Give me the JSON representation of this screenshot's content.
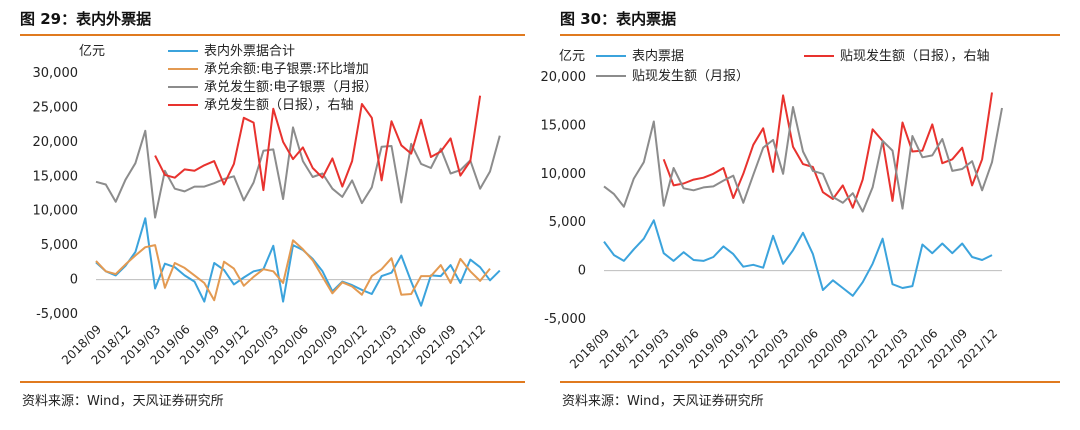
{
  "figures": [
    {
      "title": "图 29：表内外票据",
      "source": "资料来源：Wind，天风证券研究所"
    },
    {
      "title": "图 30：表内票据",
      "source": "资料来源：Wind，天风证券研究所"
    }
  ],
  "chart_data": [
    {
      "type": "line",
      "ylabel": "亿元",
      "ylim": [
        -10000,
        30000
      ],
      "yticks": [
        -5000,
        0,
        5000,
        10000,
        15000,
        20000,
        25000,
        30000
      ],
      "ytick_labels": [
        "-5,000",
        "0",
        "5,000",
        "10,000",
        "15,000",
        "20,000",
        "25,000",
        "30,000"
      ],
      "x_start": "2018/09",
      "x_tick_labels": [
        "2018/09",
        "2018/12",
        "2019/03",
        "2019/06",
        "2019/09",
        "2019/12",
        "2020/03",
        "2020/06",
        "2020/09",
        "2020/12",
        "2021/03",
        "2021/06",
        "2021/09",
        "2021/12"
      ],
      "grid": false,
      "legend_position": "top-center",
      "series": [
        {
          "name": "表内外票据合计",
          "color": "#3ba3dc",
          "x_offset": 0,
          "values": [
            2500,
            1200,
            600,
            2000,
            4000,
            8900,
            -1300,
            2300,
            1800,
            600,
            -300,
            -3200,
            2400,
            1400,
            -700,
            300,
            1200,
            1500,
            4900,
            -3200,
            5000,
            4300,
            3000,
            1200,
            -1700,
            -300,
            -800,
            -1500,
            -2100,
            500,
            1000,
            3500,
            -300,
            -3800,
            600,
            500,
            2100,
            -500,
            2900,
            1800,
            -100,
            1300
          ]
        },
        {
          "name": "承兑余额:电子银票:环比增加",
          "color": "#e39a52",
          "x_offset": 0,
          "values": [
            2700,
            1200,
            800,
            2200,
            3500,
            4700,
            5000,
            -1200,
            2400,
            1700,
            600,
            -500,
            -3000,
            2600,
            1600,
            -900,
            400,
            1500,
            1200,
            -500,
            5700,
            4400,
            2800,
            400,
            -2000,
            -400,
            -1000,
            -2200,
            500,
            1500,
            3100,
            -2200,
            -2100,
            500,
            500,
            2100,
            -500,
            3000,
            1200,
            -200,
            1600
          ]
        },
        {
          "name": "承兑发生额:电子银票（月报）",
          "color": "#8c8c8c",
          "x_offset": 0,
          "values": [
            14200,
            13800,
            11300,
            14500,
            16900,
            21600,
            9000,
            15800,
            13200,
            12800,
            13500,
            13500,
            14000,
            14600,
            15000,
            11500,
            14100,
            18700,
            18900,
            11700,
            22100,
            17200,
            14900,
            15400,
            13200,
            12000,
            14400,
            11100,
            13400,
            19300,
            19400,
            11200,
            19700,
            16800,
            16200,
            19000,
            15400,
            15900,
            17300,
            13200,
            15700,
            20900
          ]
        },
        {
          "name": "承兑发生额（日报），右轴",
          "color": "#e8322e",
          "x_offset": 6,
          "values": [
            18000,
            15200,
            14800,
            16000,
            15800,
            16600,
            17200,
            13800,
            16800,
            23500,
            22800,
            13000,
            24800,
            20000,
            17500,
            19200,
            16200,
            14800,
            17600,
            13500,
            17200,
            25500,
            23500,
            14400,
            23000,
            19500,
            18300,
            23200,
            17800,
            18600,
            20500,
            15100,
            17200,
            26700
          ]
        }
      ]
    },
    {
      "type": "line",
      "ylabel": "亿元",
      "ylim": [
        -7000,
        20000
      ],
      "yticks": [
        -5000,
        0,
        5000,
        10000,
        15000,
        20000
      ],
      "ytick_labels": [
        "-5,000",
        "0",
        "5,000",
        "10,000",
        "15,000",
        "20,000"
      ],
      "x_start": "2018/09",
      "x_tick_labels": [
        "2018/09",
        "2018/12",
        "2019/03",
        "2019/06",
        "2019/09",
        "2019/12",
        "2020/03",
        "2020/06",
        "2020/09",
        "2020/12",
        "2021/03",
        "2021/06",
        "2021/09",
        "2021/12"
      ],
      "grid": false,
      "legend_position": "top",
      "series": [
        {
          "name": "表内票据",
          "color": "#3ba3dc",
          "x_offset": 0,
          "values": [
            3000,
            1600,
            1000,
            2200,
            3300,
            5200,
            1800,
            1000,
            1900,
            1100,
            1000,
            1400,
            2500,
            1700,
            400,
            600,
            300,
            3600,
            700,
            2100,
            3900,
            1700,
            -2000,
            -1000,
            -1800,
            -2600,
            -1200,
            700,
            3300,
            -1400,
            -1800,
            -1600,
            2700,
            1800,
            2800,
            1800,
            2800,
            1400,
            1100,
            1600
          ]
        },
        {
          "name": "贴现发生额（日报），右轴",
          "color": "#e8322e",
          "x_offset": 6,
          "values": [
            11500,
            8800,
            9000,
            9400,
            9600,
            10000,
            10600,
            7500,
            10000,
            13000,
            14700,
            10200,
            18100,
            12800,
            11000,
            10700,
            8100,
            7400,
            8800,
            6500,
            9400,
            14600,
            13400,
            7200,
            15300,
            12300,
            12400,
            15100,
            11100,
            11500,
            12700,
            8800,
            11500,
            18400
          ]
        },
        {
          "name": "贴现发生额（月报）",
          "color": "#8c8c8c",
          "x_offset": 0,
          "values": [
            8700,
            7900,
            6600,
            9500,
            11200,
            15400,
            6700,
            10600,
            8500,
            8300,
            8600,
            8700,
            9300,
            9800,
            7000,
            9900,
            12700,
            13500,
            10000,
            16900,
            12300,
            10300,
            10000,
            7600,
            7000,
            8000,
            6100,
            8600,
            13400,
            12400,
            6400,
            13900,
            11700,
            11900,
            13600,
            10300,
            10500,
            11300,
            8300,
            11200,
            16800
          ]
        }
      ]
    }
  ]
}
